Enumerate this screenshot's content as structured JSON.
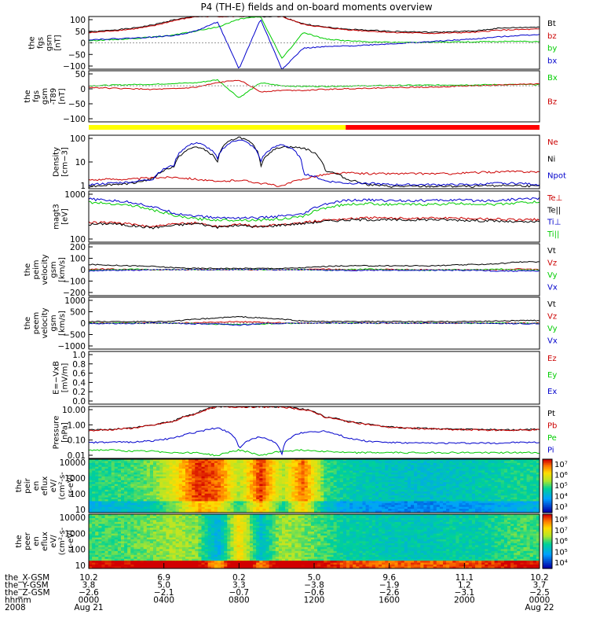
{
  "title": "P4 (TH-E) fields and on-board moments overview",
  "chart_data": [
    {
      "type": "line",
      "ylabel": [
        "the",
        "fgs",
        "gsm",
        "[nT]"
      ],
      "yticks": [
        "100",
        "50",
        "0",
        "−50",
        "−100"
      ],
      "ylim": [
        -100,
        100
      ],
      "series": [
        {
          "name": "Bt",
          "color": "#000000",
          "y": [
            40,
            48,
            55,
            68,
            88,
            100,
            100,
            100,
            100,
            100,
            72,
            60,
            52,
            48,
            44,
            42,
            40,
            42,
            45,
            55,
            58,
            60
          ]
        },
        {
          "name": "bz",
          "color": "#cc0000",
          "y": [
            38,
            45,
            52,
            64,
            85,
            100,
            100,
            100,
            100,
            100,
            70,
            58,
            50,
            45,
            40,
            38,
            36,
            38,
            40,
            48,
            50,
            52
          ]
        },
        {
          "name": "by",
          "color": "#00cc00",
          "y": [
            8,
            12,
            16,
            22,
            30,
            45,
            60,
            90,
            100,
            -60,
            40,
            15,
            8,
            4,
            2,
            2,
            2,
            3,
            4,
            5,
            6,
            6
          ]
        },
        {
          "name": "bx",
          "color": "#0000cc",
          "y": [
            12,
            15,
            18,
            22,
            28,
            45,
            80,
            -100,
            90,
            -100,
            -20,
            -15,
            -12,
            -8,
            -4,
            0,
            5,
            10,
            15,
            22,
            28,
            32
          ]
        }
      ]
    },
    {
      "type": "line",
      "ylabel": [
        "the",
        "fgs",
        "gsm",
        "-T89",
        "[nT]"
      ],
      "yticks": [
        "50",
        "0",
        "−50",
        "−100"
      ],
      "ylim": [
        -120,
        50
      ],
      "series": [
        {
          "name": "Bx",
          "color": "#00cc00",
          "y": [
            0,
            2,
            4,
            5,
            8,
            10,
            20,
            -40,
            10,
            0,
            -2,
            -2,
            -1,
            0,
            1,
            2,
            2,
            3,
            3,
            4,
            4,
            4
          ]
        },
        {
          "name": "Bz",
          "color": "#cc0000",
          "y": [
            -5,
            -8,
            -10,
            -12,
            -10,
            -5,
            10,
            20,
            -20,
            -15,
            -15,
            -12,
            -10,
            -8,
            -6,
            -5,
            -4,
            -2,
            0,
            2,
            5,
            6
          ]
        }
      ],
      "bar_colors": [
        "yellow",
        "red"
      ],
      "bar_split_fraction": 0.57
    },
    {
      "type": "line",
      "ylabel": [
        "Density",
        "[cm−3]"
      ],
      "yticks": [
        "100",
        "10",
        "1"
      ],
      "log": true,
      "series": [
        {
          "name": "Ne",
          "color": "#cc0000",
          "y": [
            0.9,
            1.0,
            1.0,
            1.2,
            1.3,
            1.0,
            0.7,
            0.9,
            0.6,
            0.4,
            1.0,
            1.8,
            2.2,
            2.0,
            2.0,
            2.0,
            2.0,
            2.0,
            2.3,
            2.5,
            2.6,
            2.5
          ]
        },
        {
          "name": "Ni",
          "color": "#000000",
          "y": [
            0.4,
            0.5,
            0.6,
            1.0,
            5.0,
            60,
            8.0,
            200,
            4.0,
            60,
            50,
            3.0,
            1.0,
            0.5,
            0.4,
            0.4,
            0.4,
            0.4,
            0.4,
            0.45,
            0.45,
            0.4
          ]
        },
        {
          "name": "Npot",
          "color": "#0000cc",
          "y": [
            0.5,
            0.6,
            0.7,
            1.0,
            6.0,
            100,
            12,
            150,
            8.0,
            80,
            2.0,
            0.8,
            0.6,
            0.6,
            0.5,
            0.5,
            0.5,
            0.5,
            0.5,
            0.6,
            0.6,
            0.5
          ]
        }
      ]
    },
    {
      "type": "line",
      "ylabel": [
        "magt3",
        "[eV]"
      ],
      "yticks": [
        "1000",
        "100"
      ],
      "log": true,
      "series": [
        {
          "name": "Te⊥",
          "color": "#cc0000",
          "y": [
            300,
            320,
            250,
            200,
            260,
            300,
            200,
            250,
            200,
            250,
            300,
            400,
            450,
            500,
            480,
            480,
            500,
            480,
            460,
            450,
            400,
            420
          ]
        },
        {
          "name": "Te||",
          "color": "#000000",
          "y": [
            250,
            280,
            220,
            180,
            230,
            280,
            190,
            230,
            190,
            240,
            280,
            350,
            400,
            420,
            400,
            400,
            420,
            400,
            380,
            360,
            320,
            330
          ]
        },
        {
          "name": "Ti⊥",
          "color": "#0000cc",
          "y": [
            3500,
            3000,
            2500,
            1500,
            800,
            600,
            500,
            500,
            500,
            600,
            700,
            2000,
            3000,
            3200,
            3000,
            3000,
            3000,
            3200,
            3000,
            3000,
            3500,
            3800
          ]
        },
        {
          "name": "Ti||",
          "color": "#00cc00",
          "y": [
            2500,
            2200,
            1800,
            1100,
            600,
            450,
            400,
            400,
            400,
            450,
            550,
            1400,
            2000,
            2200,
            2000,
            2000,
            2000,
            2200,
            2100,
            2000,
            2400,
            2600
          ]
        }
      ]
    },
    {
      "type": "line",
      "ylabel": [
        "the",
        "peim",
        "velocity",
        "gsm",
        "[km/s]"
      ],
      "yticks": [
        "200",
        "100",
        "0",
        "−100",
        "−200"
      ],
      "ylim": [
        -200,
        200
      ],
      "series": [
        {
          "name": "Vt",
          "color": "#000000",
          "y": [
            40,
            35,
            30,
            25,
            15,
            10,
            10,
            10,
            10,
            10,
            15,
            25,
            30,
            30,
            30,
            30,
            30,
            35,
            40,
            45,
            60,
            60
          ]
        },
        {
          "name": "Vz",
          "color": "#cc0000",
          "y": [
            5,
            5,
            0,
            0,
            0,
            0,
            0,
            0,
            0,
            0,
            0,
            5,
            0,
            0,
            5,
            0,
            0,
            0,
            0,
            0,
            5,
            0
          ]
        },
        {
          "name": "Vy",
          "color": "#00cc00",
          "y": [
            -5,
            0,
            5,
            0,
            0,
            0,
            0,
            0,
            0,
            0,
            0,
            -5,
            0,
            5,
            0,
            0,
            -5,
            0,
            0,
            5,
            0,
            0
          ]
        },
        {
          "name": "Vx",
          "color": "#0000cc",
          "y": [
            -10,
            -5,
            -5,
            0,
            0,
            0,
            0,
            0,
            0,
            0,
            0,
            -5,
            -5,
            -5,
            -5,
            -5,
            -5,
            -5,
            -5,
            -10,
            -10,
            -10
          ]
        }
      ]
    },
    {
      "type": "line",
      "ylabel": [
        "the",
        "peem",
        "velocity",
        "gsm",
        "[km/s]"
      ],
      "yticks": [
        "1000",
        "500",
        "0",
        "−500",
        "−1000"
      ],
      "ylim": [
        -1000,
        1000
      ],
      "series": [
        {
          "name": "Vt",
          "color": "#000000",
          "y": [
            60,
            60,
            60,
            60,
            80,
            150,
            200,
            250,
            200,
            150,
            80,
            60,
            60,
            60,
            60,
            60,
            60,
            60,
            70,
            80,
            100,
            100
          ]
        },
        {
          "name": "Vz",
          "color": "#cc0000",
          "y": [
            10,
            5,
            0,
            0,
            0,
            20,
            40,
            60,
            30,
            10,
            0,
            0,
            5,
            0,
            0,
            0,
            5,
            0,
            0,
            0,
            10,
            0
          ]
        },
        {
          "name": "Vy",
          "color": "#00cc00",
          "y": [
            0,
            0,
            0,
            0,
            0,
            -20,
            -40,
            -60,
            -30,
            -10,
            0,
            0,
            0,
            0,
            0,
            0,
            0,
            0,
            0,
            0,
            0,
            0
          ]
        },
        {
          "name": "Vx",
          "color": "#0000cc",
          "y": [
            -20,
            -10,
            -10,
            0,
            0,
            -30,
            -20,
            -80,
            -20,
            -10,
            0,
            0,
            0,
            0,
            0,
            0,
            0,
            0,
            0,
            -10,
            -20,
            -20
          ]
        }
      ]
    },
    {
      "type": "line",
      "ylabel": [
        "E=−VxB",
        "[mV/m]"
      ],
      "yticks": [
        "1.0",
        "0.8",
        "0.6",
        "0.4",
        "0.2",
        "0.0"
      ],
      "ylim": [
        0,
        1
      ],
      "series": [
        {
          "name": "Ez",
          "color": "#cc0000",
          "y": []
        },
        {
          "name": "Ey",
          "color": "#00cc00",
          "y": []
        },
        {
          "name": "Ex",
          "color": "#0000cc",
          "y": []
        }
      ]
    },
    {
      "type": "line",
      "ylabel": [
        "Pressure",
        "[nPa]"
      ],
      "yticks": [
        "10.00",
        "1.00",
        "0.10",
        "0.01"
      ],
      "log": true,
      "series": [
        {
          "name": "Pt",
          "color": "#000000",
          "y": [
            0.7,
            0.8,
            1.0,
            1.6,
            3.0,
            10,
            30,
            30,
            30,
            30,
            20,
            6.0,
            3.0,
            1.8,
            1.2,
            1.0,
            0.9,
            0.8,
            0.8,
            0.75,
            0.75,
            0.8
          ]
        },
        {
          "name": "Pb",
          "color": "#cc0000",
          "y": [
            0.65,
            0.75,
            0.95,
            1.5,
            2.8,
            9.0,
            28,
            28,
            28,
            28,
            18,
            5.5,
            2.8,
            1.7,
            1.1,
            0.95,
            0.85,
            0.75,
            0.75,
            0.7,
            0.7,
            0.75
          ]
        },
        {
          "name": "Pe",
          "color": "#00cc00",
          "y": [
            0.03,
            0.03,
            0.025,
            0.025,
            0.02,
            0.02,
            0.012,
            0.03,
            0.012,
            0.025,
            0.03,
            0.025,
            0.02,
            0.02,
            0.02,
            0.02,
            0.02,
            0.02,
            0.02,
            0.02,
            0.02,
            0.02
          ]
        },
        {
          "name": "Pi",
          "color": "#0000cc",
          "y": [
            0.1,
            0.1,
            0.11,
            0.13,
            0.2,
            0.5,
            1.0,
            0.03,
            0.25,
            0.015,
            0.5,
            0.6,
            0.2,
            0.12,
            0.1,
            0.09,
            0.09,
            0.09,
            0.09,
            0.09,
            0.1,
            0.1
          ]
        }
      ]
    },
    {
      "type": "heatmap",
      "ylabel": [
        "the",
        "peir",
        "en",
        "eflux",
        "eV/",
        "(cm²-s-",
        "sr-eV)"
      ],
      "yticks": [
        "10000",
        "1000",
        "100",
        "10"
      ],
      "colorbar_ticks": [
        "10⁷",
        "10⁶",
        "10⁵",
        "10⁴",
        "10³"
      ],
      "intensity_by_time": [
        0.45,
        0.48,
        0.5,
        0.55,
        0.7,
        0.95,
        0.9,
        0.6,
        0.95,
        0.6,
        0.9,
        0.5,
        0.42,
        0.4,
        0.38,
        0.37,
        0.36,
        0.38,
        0.4,
        0.42,
        0.45,
        0.45
      ]
    },
    {
      "type": "heatmap",
      "ylabel": [
        "the",
        "peer",
        "en",
        "eflux",
        "eV/",
        "(cm²-s-",
        "sr-eV)"
      ],
      "yticks": [
        "10000",
        "1000",
        "100",
        "10"
      ],
      "colorbar_ticks": [
        "10⁸",
        "10⁷",
        "10⁶",
        "10⁵",
        "10⁴"
      ],
      "intensity_by_time": [
        0.5,
        0.5,
        0.52,
        0.55,
        0.6,
        0.55,
        0.3,
        0.75,
        0.35,
        0.6,
        0.55,
        0.5,
        0.42,
        0.42,
        0.4,
        0.4,
        0.4,
        0.42,
        0.42,
        0.45,
        0.5,
        0.5
      ]
    }
  ],
  "orbit_table": {
    "rows": [
      {
        "label": "the_X-GSM",
        "values": [
          "10.2",
          "6.9",
          "0.2",
          "5.0",
          "9.6",
          "11.1",
          "10.2"
        ]
      },
      {
        "label": "the_Y-GSM",
        "values": [
          "3.8",
          "5.0",
          "3.3",
          "−3.8",
          "−1.9",
          "1.2",
          "3.7"
        ]
      },
      {
        "label": "the_Z-GSM",
        "values": [
          "−2.6",
          "−2.1",
          "−0.7",
          "−0.6",
          "−2.6",
          "−3.1",
          "−2.5"
        ]
      },
      {
        "label": "hhmm",
        "values": [
          "0000",
          "0400",
          "0800",
          "1200",
          "1600",
          "2000",
          "0000"
        ]
      },
      {
        "label": "2008",
        "values": [
          "Aug 21",
          "",
          "",
          "",
          "",
          "",
          "Aug 22"
        ]
      }
    ]
  }
}
